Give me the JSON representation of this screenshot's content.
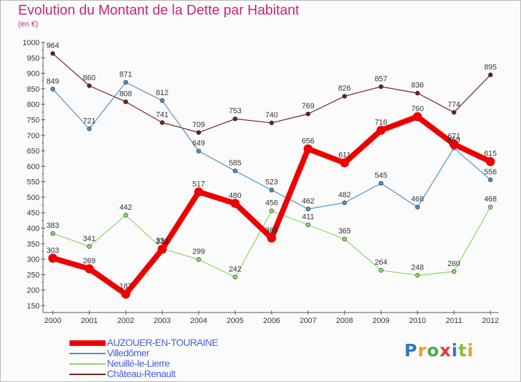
{
  "title": "Evolution du Montant de la Dette par Habitant",
  "unit": "(en €)",
  "logo": "Proxiti",
  "chart_data": {
    "type": "line",
    "x": [
      "2000",
      "2001",
      "2002",
      "2003",
      "2004",
      "2005",
      "2006",
      "2007",
      "2008",
      "2009",
      "2010",
      "2011",
      "2012"
    ],
    "ylim": [
      150,
      1000
    ],
    "yticks": [
      150,
      200,
      250,
      300,
      350,
      400,
      450,
      500,
      550,
      600,
      650,
      700,
      750,
      800,
      850,
      900,
      950,
      1000
    ],
    "grid": false,
    "legend_position": "bottom-left",
    "series": [
      {
        "name": "AUZOUER-EN-TOURAINE",
        "color": "#ee0000",
        "values": [
          303,
          269,
          187,
          332,
          517,
          480,
          368,
          656,
          611,
          716,
          760,
          671,
          615
        ]
      },
      {
        "name": "Villedômer",
        "color": "#4a90c8",
        "values": [
          849,
          721,
          871,
          812,
          649,
          585,
          523,
          462,
          482,
          545,
          468,
          659,
          556
        ]
      },
      {
        "name": "Neuillé-le-Lierre",
        "color": "#88d860",
        "values": [
          383,
          341,
          442,
          334,
          299,
          242,
          456,
          411,
          365,
          264,
          248,
          260,
          468
        ]
      },
      {
        "name": "Château-Renault",
        "color": "#6e1f1f",
        "values": [
          964,
          860,
          808,
          741,
          709,
          753,
          740,
          769,
          826,
          857,
          836,
          774,
          895
        ]
      }
    ]
  }
}
